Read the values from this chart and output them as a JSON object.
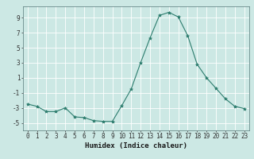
{
  "x": [
    0,
    1,
    2,
    3,
    4,
    5,
    6,
    7,
    8,
    9,
    10,
    11,
    12,
    13,
    14,
    15,
    16,
    17,
    18,
    19,
    20,
    21,
    22,
    23
  ],
  "y": [
    -2.5,
    -2.8,
    -3.5,
    -3.5,
    -3.0,
    -4.2,
    -4.3,
    -4.7,
    -4.8,
    -4.8,
    -2.7,
    -0.5,
    3.0,
    6.3,
    9.3,
    9.7,
    9.1,
    6.6,
    2.8,
    1.0,
    -0.4,
    -1.8,
    -2.8,
    -3.1
  ],
  "line_color": "#2d7d6e",
  "marker": "*",
  "marker_size": 3,
  "bg_color": "#cce8e4",
  "grid_color": "#ffffff",
  "xlabel": "Humidex (Indice chaleur)",
  "ylim": [
    -6,
    10.5
  ],
  "xlim": [
    -0.5,
    23.5
  ],
  "yticks": [
    -5,
    -3,
    -1,
    1,
    3,
    5,
    7,
    9
  ],
  "xticks": [
    0,
    1,
    2,
    3,
    4,
    5,
    6,
    7,
    8,
    9,
    10,
    11,
    12,
    13,
    14,
    15,
    16,
    17,
    18,
    19,
    20,
    21,
    22,
    23
  ],
  "xtick_labels": [
    "0",
    "1",
    "2",
    "3",
    "4",
    "5",
    "6",
    "7",
    "8",
    "9",
    "10",
    "11",
    "12",
    "13",
    "14",
    "15",
    "16",
    "17",
    "18",
    "19",
    "20",
    "21",
    "22",
    "23"
  ],
  "xlabel_fontsize": 6.5,
  "tick_fontsize": 5.5
}
